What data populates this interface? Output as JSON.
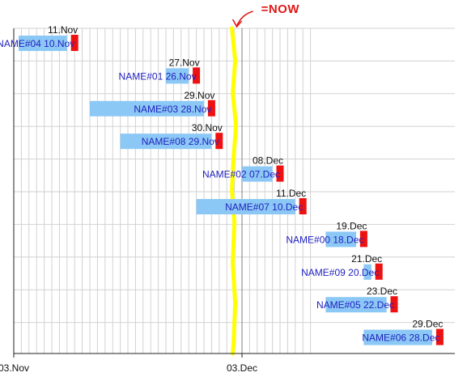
{
  "chart_data": {
    "type": "timeline",
    "x_axis": {
      "type": "date",
      "range": [
        "2023-11-03",
        "2023-12-12"
      ],
      "ticks": [
        {
          "date": "2023-11-03",
          "label": "03.Nov"
        },
        {
          "date": "2023-12-03",
          "label": "03.Dec"
        }
      ],
      "grid": "daily"
    },
    "now": {
      "date": "2023-12-02",
      "annotation": "=NOW"
    },
    "rows": [
      {
        "name": "NAME#04",
        "label": "NAME#04  10.Nov",
        "start": "2023-11-03",
        "end": "2023-11-10",
        "deadline": "2023-11-11",
        "deadline_label": "11.Nov"
      },
      {
        "name": "NAME#01",
        "label": "NAME#01  26.Nov",
        "start": "2023-11-23",
        "end": "2023-11-26",
        "deadline": "2023-11-27",
        "deadline_label": "27.Nov"
      },
      {
        "name": "NAME#03",
        "label": "NAME#03  28.Nov",
        "start": "2023-11-13",
        "end": "2023-11-28",
        "deadline": "2023-11-29",
        "deadline_label": "29.Nov"
      },
      {
        "name": "NAME#08",
        "label": "NAME#08  29.Nov",
        "start": "2023-11-17",
        "end": "2023-11-29",
        "deadline": "2023-11-30",
        "deadline_label": "30.Nov"
      },
      {
        "name": "NAME#02",
        "label": "NAME#02  07.Dec",
        "start": "2023-12-03",
        "end": "2023-12-07",
        "deadline": "2023-12-08",
        "deadline_label": "08.Dec"
      },
      {
        "name": "NAME#07",
        "label": "NAME#07  10.Dec",
        "start": "2023-11-27",
        "end": "2023-12-10",
        "deadline": "2023-12-11",
        "deadline_label": "11.Dec"
      },
      {
        "name": "NAME#00",
        "label": "NAME#00  18.Dec",
        "start": "2023-12-14",
        "end": "2023-12-18",
        "deadline": "2023-12-19",
        "deadline_label": "19.Dec"
      },
      {
        "name": "NAME#09",
        "label": "NAME#09  20.Dec",
        "start": "2023-12-19",
        "end": "2023-12-20",
        "deadline": "2023-12-21",
        "deadline_label": "21.Dec"
      },
      {
        "name": "NAME#05",
        "label": "NAME#05  22.Dec",
        "start": "2023-12-14",
        "end": "2023-12-22",
        "deadline": "2023-12-23",
        "deadline_label": "23.Dec"
      },
      {
        "name": "NAME#06",
        "label": "NAME#06  28.Dec",
        "start": "2023-12-19",
        "end": "2023-12-28",
        "deadline": "2023-12-29",
        "deadline_label": "29.Dec"
      }
    ],
    "colors": {
      "bar": "#8cc8f5",
      "deadline": "#ee1111",
      "now_line": "#ffff00",
      "now_annotation": "#e01818",
      "grid": "#d2d2d2",
      "major_grid": "#808080",
      "axis": "#222222",
      "bar_text": "#1f1fbf"
    }
  }
}
